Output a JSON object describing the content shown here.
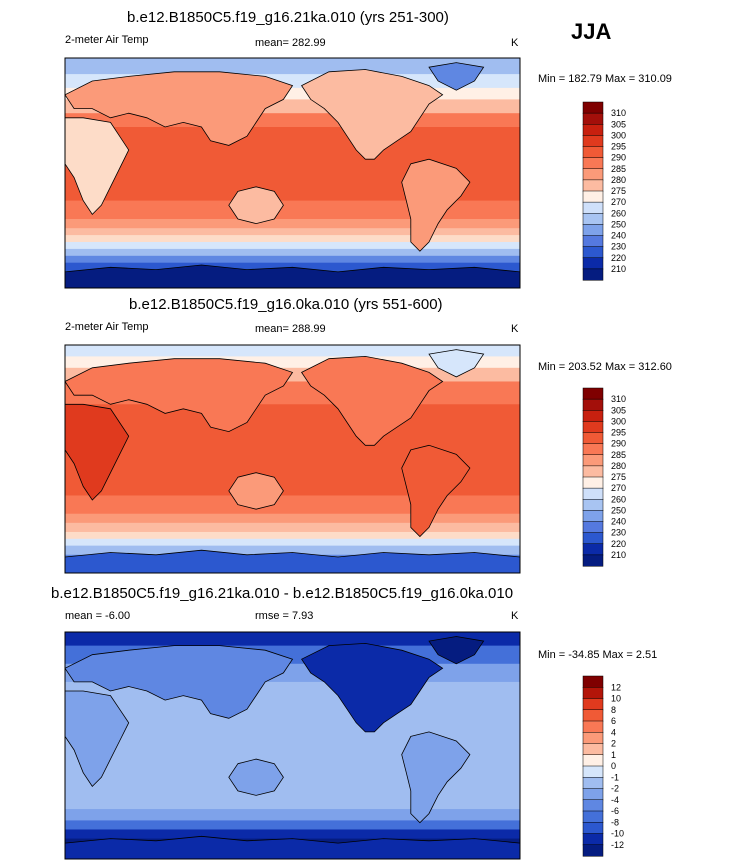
{
  "season": "JJA",
  "colors": {
    "warm": [
      "#fff0e6",
      "#fddcc8",
      "#fcbba1",
      "#fb9a79",
      "#f97855",
      "#f05a36",
      "#e03a1e",
      "#c8200f",
      "#a30f0a",
      "#7f0000"
    ],
    "cool": [
      "#d6e6fb",
      "#bfd4f6",
      "#a0bdf0",
      "#7ea2ea",
      "#5f87e2",
      "#4470d9",
      "#2c58cf",
      "#1a40c0",
      "#0b2aa8",
      "#051c80"
    ],
    "land_line": "#000000"
  },
  "chart_data": [
    {
      "type": "heatmap",
      "title": "b.e12.B1850C5.f19_g16.21ka.010 (yrs 251-300)",
      "left_label": "2-meter Air Temp",
      "mean_label": "mean= 282.99",
      "units": "K",
      "minmax": "Min = 182.79 Max = 310.09",
      "min": 182.79,
      "max": 310.09,
      "mean": 282.99,
      "colorbar_levels": [
        "310",
        "305",
        "300",
        "295",
        "290",
        "285",
        "280",
        "275",
        "270",
        "260",
        "250",
        "240",
        "230",
        "220",
        "210"
      ]
    },
    {
      "type": "heatmap",
      "title": "b.e12.B1850C5.f19_g16.0ka.010 (yrs 551-600)",
      "left_label": "2-meter Air Temp",
      "mean_label": "mean= 288.99",
      "units": "K",
      "minmax": "Min = 203.52 Max = 312.60",
      "min": 203.52,
      "max": 312.6,
      "mean": 288.99,
      "colorbar_levels": [
        "310",
        "305",
        "300",
        "295",
        "290",
        "285",
        "280",
        "275",
        "270",
        "260",
        "250",
        "240",
        "230",
        "220",
        "210"
      ]
    },
    {
      "type": "heatmap",
      "title": "b.e12.B1850C5.f19_g16.21ka.010 - b.e12.B1850C5.f19_g16.0ka.010",
      "left_label": "mean =  -6.00",
      "mean_label": "rmse =   7.93",
      "units": "K",
      "minmax": "Min = -34.85 Max =   2.51",
      "min": -34.85,
      "max": 2.51,
      "mean": -6.0,
      "rmse": 7.93,
      "colorbar_levels": [
        "12",
        "10",
        "8",
        "6",
        "4",
        "2",
        "1",
        "0",
        "-1",
        "-2",
        "-4",
        "-6",
        "-8",
        "-10",
        "-12"
      ]
    }
  ]
}
